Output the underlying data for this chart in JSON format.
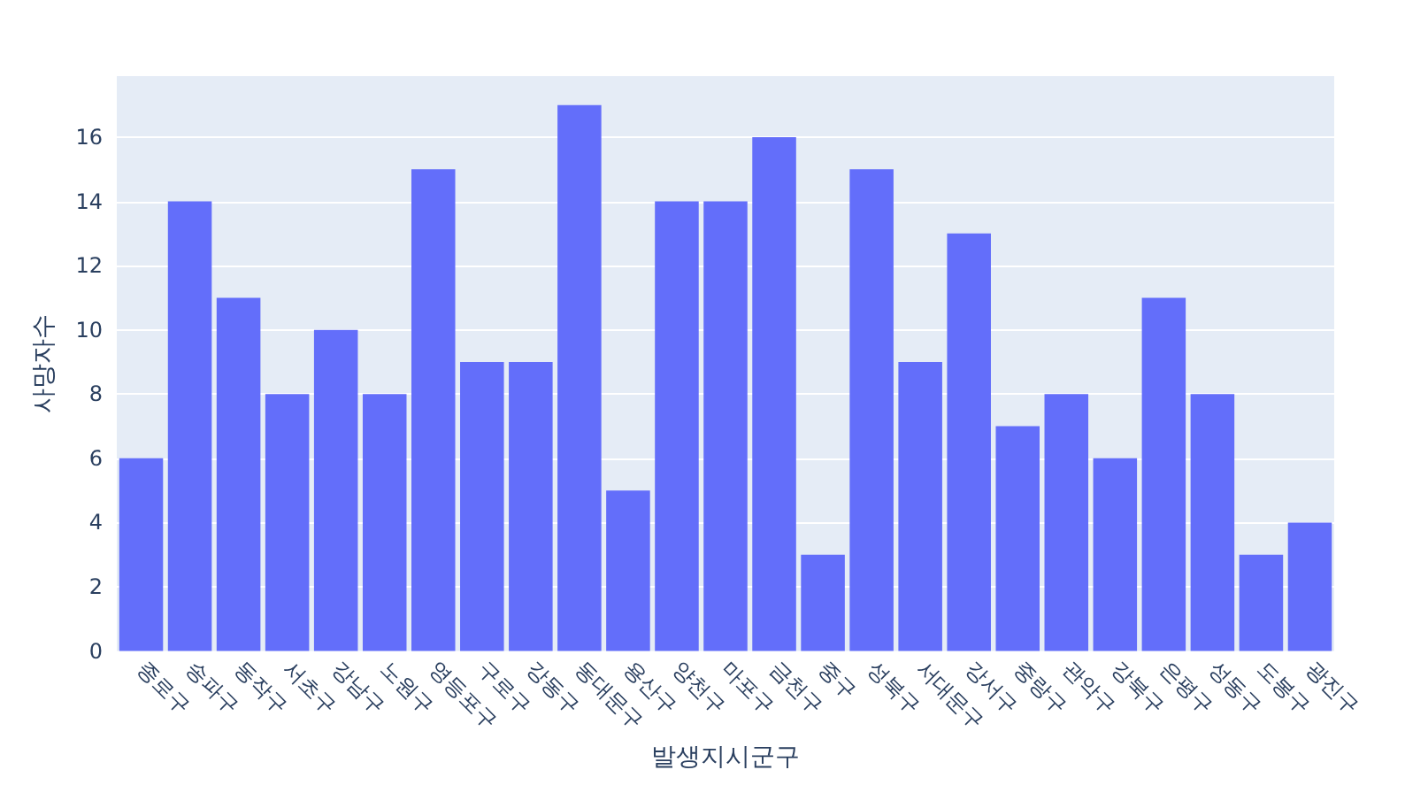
{
  "chart_data": {
    "type": "bar",
    "xlabel": "발생지시군구",
    "ylabel": "사망자수",
    "categories": [
      "종로구",
      "송파구",
      "동작구",
      "서초구",
      "강남구",
      "노원구",
      "영등포구",
      "구로구",
      "강동구",
      "동대문구",
      "용산구",
      "양천구",
      "마포구",
      "금천구",
      "중구",
      "성북구",
      "서대문구",
      "강서구",
      "중랑구",
      "관악구",
      "강북구",
      "은평구",
      "성동구",
      "도봉구",
      "광진구"
    ],
    "values": [
      6,
      14,
      11,
      8,
      10,
      8,
      15,
      9,
      9,
      17,
      5,
      14,
      14,
      16,
      3,
      15,
      9,
      13,
      7,
      8,
      6,
      11,
      8,
      3,
      4
    ],
    "color": "#636efa",
    "ylim": [
      0,
      17.9
    ],
    "yticks": [
      0,
      2,
      4,
      6,
      8,
      10,
      12,
      14,
      16
    ],
    "grid": "y"
  }
}
